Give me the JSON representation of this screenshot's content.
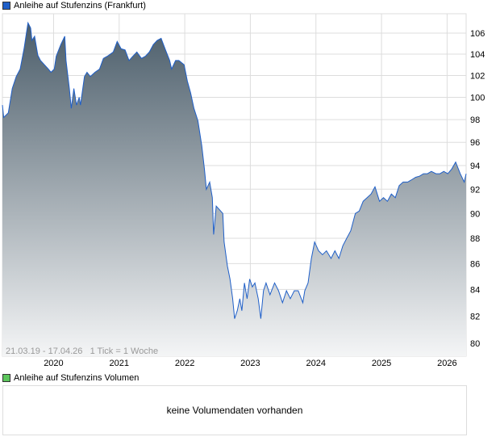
{
  "chart_data": {
    "type": "area",
    "title": "Anleihe auf Stufenzins (Frankfurt)",
    "range_label": "21.03.19 - 17.04.26   1 Tick = 1 Woche",
    "y_scale": "log",
    "ylim": [
      79.3,
      108
    ],
    "xlim": [
      2019.22,
      2026.29
    ],
    "y_ticks": [
      80,
      82,
      84,
      86,
      88,
      90,
      92,
      94,
      96,
      98,
      100,
      102,
      104,
      106
    ],
    "x_ticks": [
      {
        "v": 2020,
        "label": "2020"
      },
      {
        "v": 2021,
        "label": "2021"
      },
      {
        "v": 2022,
        "label": "2022"
      },
      {
        "v": 2023,
        "label": "2023"
      },
      {
        "v": 2024,
        "label": "2024"
      },
      {
        "v": 2025,
        "label": "2025"
      },
      {
        "v": 2026,
        "label": "2026"
      }
    ],
    "grid": true,
    "colors": {
      "line": "#1f5fc8",
      "fill_top": "#4b5d6a",
      "fill_bottom": "#f4f5f6",
      "grid": "#dddddd"
    },
    "x": [
      2019.22,
      2019.24,
      2019.31,
      2019.37,
      2019.43,
      2019.49,
      2019.55,
      2019.61,
      2019.65,
      2019.67,
      2019.71,
      2019.76,
      2019.8,
      2019.86,
      2019.92,
      2019.96,
      2020.01,
      2020.04,
      2020.11,
      2020.17,
      2020.19,
      2020.24,
      2020.27,
      2020.31,
      2020.35,
      2020.39,
      2020.41,
      2020.47,
      2020.51,
      2020.56,
      2020.63,
      2020.7,
      2020.76,
      2020.82,
      2020.91,
      2020.97,
      2021.03,
      2021.09,
      2021.15,
      2021.21,
      2021.27,
      2021.34,
      2021.4,
      2021.46,
      2021.52,
      2021.58,
      2021.64,
      2021.7,
      2021.77,
      2021.8,
      2021.86,
      2021.91,
      2021.99,
      2022.04,
      2022.09,
      2022.14,
      2022.2,
      2022.26,
      2022.3,
      2022.33,
      2022.38,
      2022.42,
      2022.44,
      2022.48,
      2022.53,
      2022.58,
      2022.6,
      2022.65,
      2022.69,
      2022.73,
      2022.76,
      2022.8,
      2022.84,
      2022.87,
      2022.91,
      2022.95,
      2022.99,
      2023.03,
      2023.07,
      2023.12,
      2023.16,
      2023.2,
      2023.24,
      2023.3,
      2023.37,
      2023.43,
      2023.49,
      2023.55,
      2023.61,
      2023.67,
      2023.73,
      2023.8,
      2023.83,
      2023.88,
      2023.93,
      2023.98,
      2024.04,
      2024.1,
      2024.16,
      2024.23,
      2024.29,
      2024.35,
      2024.41,
      2024.47,
      2024.53,
      2024.6,
      2024.66,
      2024.72,
      2024.78,
      2024.84,
      2024.9,
      2024.97,
      2025.03,
      2025.09,
      2025.15,
      2025.21,
      2025.27,
      2025.33,
      2025.4,
      2025.46,
      2025.52,
      2025.58,
      2025.64,
      2025.7,
      2025.76,
      2025.83,
      2025.89,
      2025.95,
      2026.01,
      2026.07,
      2026.13,
      2026.2,
      2026.26,
      2026.29
    ],
    "values": [
      99.3,
      98.2,
      98.6,
      100.8,
      101.9,
      102.6,
      104.5,
      107.0,
      106.5,
      105.3,
      105.7,
      103.9,
      103.4,
      103.0,
      102.6,
      102.3,
      102.6,
      103.8,
      104.9,
      105.7,
      103.4,
      100.8,
      99.0,
      100.8,
      99.3,
      100.0,
      99.3,
      101.9,
      102.3,
      101.9,
      102.3,
      102.6,
      103.6,
      103.8,
      104.2,
      105.2,
      104.5,
      104.4,
      103.4,
      103.8,
      104.2,
      103.6,
      103.8,
      104.2,
      104.9,
      105.3,
      105.5,
      104.5,
      103.4,
      102.6,
      103.4,
      103.4,
      103.0,
      101.5,
      100.4,
      99.0,
      97.9,
      95.7,
      93.7,
      92.0,
      92.6,
      91.3,
      88.3,
      90.6,
      90.3,
      90.0,
      87.7,
      85.8,
      84.8,
      83.3,
      81.8,
      82.4,
      83.3,
      82.4,
      84.5,
      83.3,
      84.8,
      84.2,
      84.5,
      83.3,
      81.8,
      83.9,
      84.5,
      83.6,
      84.5,
      83.9,
      83.0,
      83.9,
      83.3,
      83.9,
      83.9,
      83.0,
      83.9,
      84.5,
      86.4,
      87.7,
      87.0,
      86.7,
      87.0,
      86.4,
      87.0,
      86.4,
      87.4,
      88.0,
      88.6,
      90.0,
      90.2,
      91.0,
      91.3,
      91.6,
      92.2,
      91.0,
      91.3,
      91.0,
      91.6,
      91.3,
      92.3,
      92.6,
      92.6,
      92.8,
      93.0,
      93.1,
      93.3,
      93.3,
      93.5,
      93.3,
      93.3,
      93.5,
      93.3,
      93.7,
      94.3,
      93.3,
      92.6,
      93.3
    ]
  },
  "volume": {
    "legend": "Anleihe auf Stufenzins Volumen",
    "legend_color": "#5cc65c",
    "empty_text": "keine Volumendaten vorhanden"
  }
}
